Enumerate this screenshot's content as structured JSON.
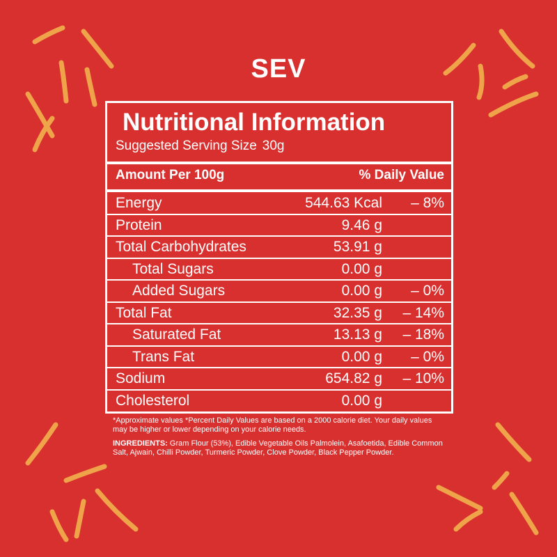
{
  "product": "SEV",
  "label": {
    "title": "Nutritional Information",
    "serving_label": "Suggested Serving Size",
    "serving_size": "30g",
    "header": {
      "amount": "Amount Per 100g",
      "daily_value": "% Daily Value"
    },
    "rows": [
      {
        "name": "Energy",
        "amount": "544.63 Kcal",
        "dv": "– 8%"
      },
      {
        "name": "Protein",
        "amount": "9.46 g"
      },
      {
        "name": "Total Carbohydrates",
        "amount": "53.91 g",
        "sub": [
          {
            "name": "Total Sugars",
            "amount": "0.00 g"
          },
          {
            "name": "Added Sugars",
            "amount": "0.00 g",
            "dv": "– 0%"
          }
        ]
      },
      {
        "name": "Total Fat",
        "amount": "32.35 g",
        "dv": "– 14%",
        "sub": [
          {
            "name": "Saturated Fat",
            "amount": "13.13 g",
            "dv": "– 18%"
          },
          {
            "name": "Trans Fat",
            "amount": "0.00 g",
            "dv": "– 0%"
          }
        ]
      },
      {
        "name": "Sodium",
        "amount": "654.82 g",
        "dv": "– 10%"
      },
      {
        "name": "Cholesterol",
        "amount": "0.00 g"
      }
    ]
  },
  "footnote": "*Approximate values  *Percent Daily Values are based on a 2000 calorie diet. Your daily values may be higher or lower depending on your calorie needs.",
  "ingredients": {
    "label": "INGREDIENTS:",
    "text": "Gram Flour (53%), Edible Vegetable Oils Palmolein, Asafoetida, Edible Common Salt, Ajwain, Chilli Powder, Turmeric Powder, Clove Powder, Black Pepper Powder."
  }
}
